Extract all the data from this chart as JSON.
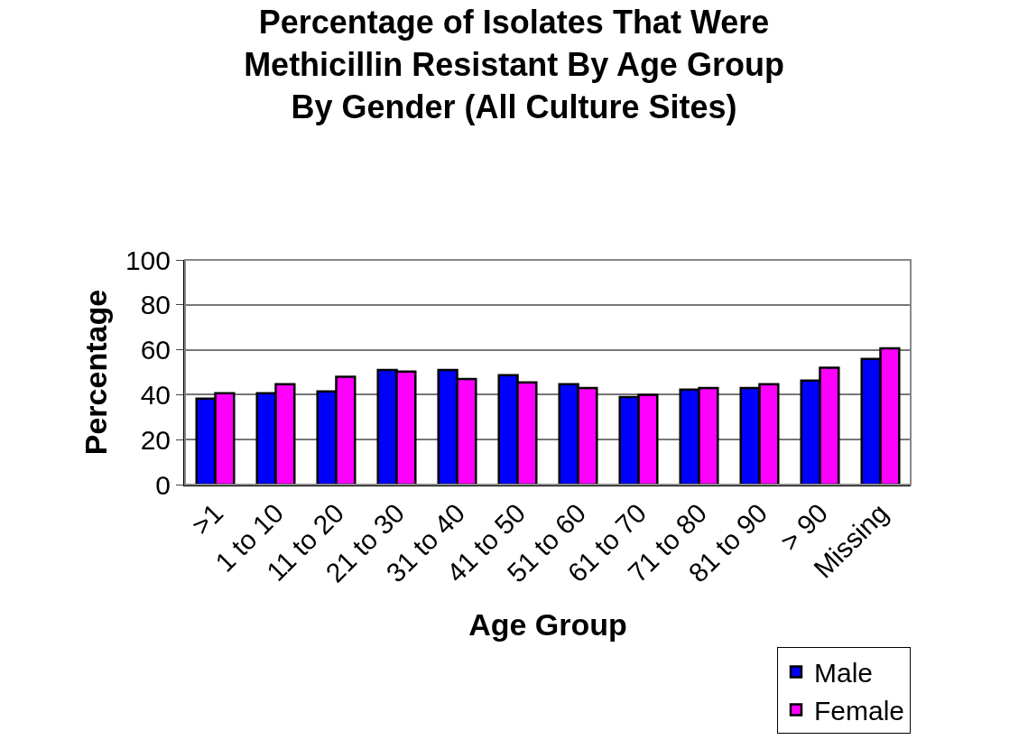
{
  "chart_data": {
    "type": "bar",
    "title": "Percentage of Isolates That Were\nMethicillin Resistant By Age Group\nBy Gender (All Culture Sites)",
    "xlabel": "Age Group",
    "ylabel": "Percentage",
    "categories": [
      ">1",
      "1 to 10",
      "11 to 20",
      "21 to 30",
      "31 to 40",
      "41 to 50",
      "51 to 60",
      "61 to 70",
      "71 to 80",
      "81 to 90",
      "> 90",
      "Missing"
    ],
    "series": [
      {
        "name": "Male",
        "color": "#0000ff",
        "values": [
          38.3,
          40.7,
          41.5,
          51,
          51,
          48.7,
          44.7,
          39,
          42.3,
          43,
          46.3,
          55.9
        ]
      },
      {
        "name": "Female",
        "color": "#ff00ff",
        "values": [
          40.7,
          44.7,
          48,
          50.3,
          47,
          45.5,
          43,
          40,
          43,
          44.7,
          52,
          60.7
        ]
      }
    ],
    "ylim": [
      0,
      100
    ],
    "yticks": [
      0,
      20,
      40,
      60,
      80,
      100
    ],
    "grid": "y",
    "legend": "bottom right"
  }
}
